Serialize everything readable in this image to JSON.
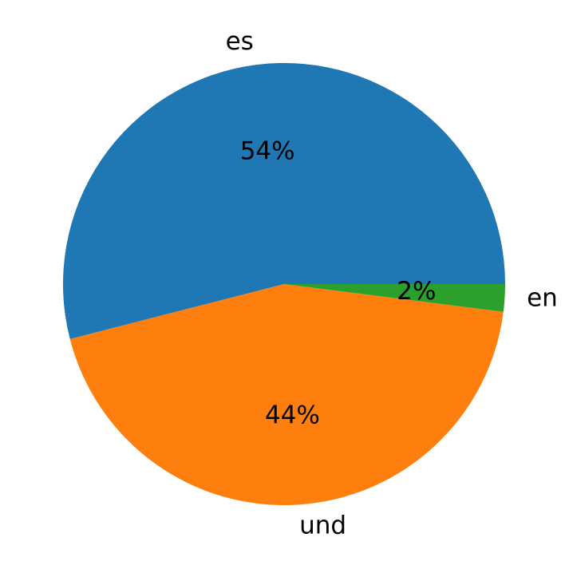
{
  "chart_data": {
    "type": "pie",
    "categories": [
      "es",
      "und",
      "en"
    ],
    "values": [
      54,
      44,
      2
    ],
    "value_labels": [
      "54%",
      "44%",
      "2%"
    ],
    "colors": [
      "#1f77b4",
      "#ff7f0e",
      "#2ca02c"
    ]
  }
}
